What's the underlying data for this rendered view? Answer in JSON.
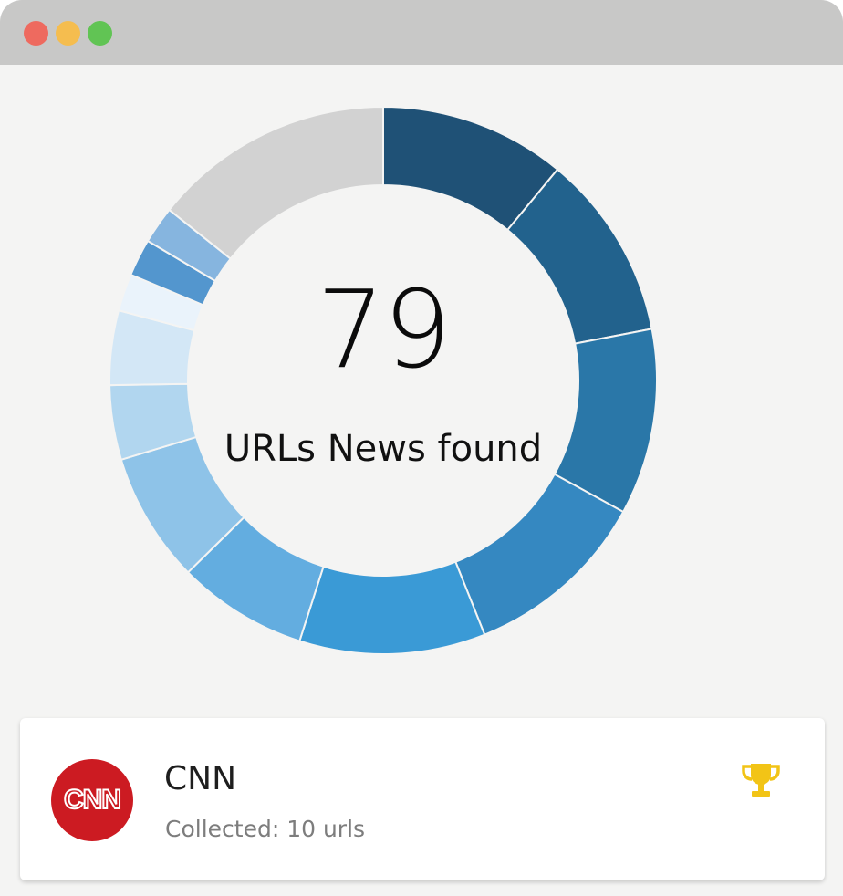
{
  "window": {
    "controls": [
      {
        "name": "close",
        "color": "#ee6a5f"
      },
      {
        "name": "minimize",
        "color": "#f5bd4f"
      },
      {
        "name": "maximize",
        "color": "#61c454"
      }
    ]
  },
  "summary": {
    "count": "79",
    "label": "URLs News found"
  },
  "donut": {
    "segments": [
      {
        "value": 10,
        "color": "#1f5176"
      },
      {
        "value": 10,
        "color": "#22628d"
      },
      {
        "value": 10,
        "color": "#2a77a8"
      },
      {
        "value": 10,
        "color": "#3588c1"
      },
      {
        "value": 10,
        "color": "#3a9ad6"
      },
      {
        "value": 7,
        "color": "#63ade0"
      },
      {
        "value": 7,
        "color": "#8ec3e8"
      },
      {
        "value": 4,
        "color": "#b1d6ef"
      },
      {
        "value": 4,
        "color": "#d3e7f6"
      },
      {
        "value": 2,
        "color": "#eaf3fb"
      },
      {
        "value": 2,
        "color": "#5396ce"
      },
      {
        "value": 2,
        "color": "#86b5df"
      },
      {
        "value": 13,
        "color": "#d2d2d2"
      }
    ]
  },
  "source_card": {
    "logo_text": "CNN",
    "name": "CNN",
    "subtitle": "Collected: 10 urls",
    "badge_icon": "trophy-icon",
    "badge_color": "#f2c416"
  }
}
